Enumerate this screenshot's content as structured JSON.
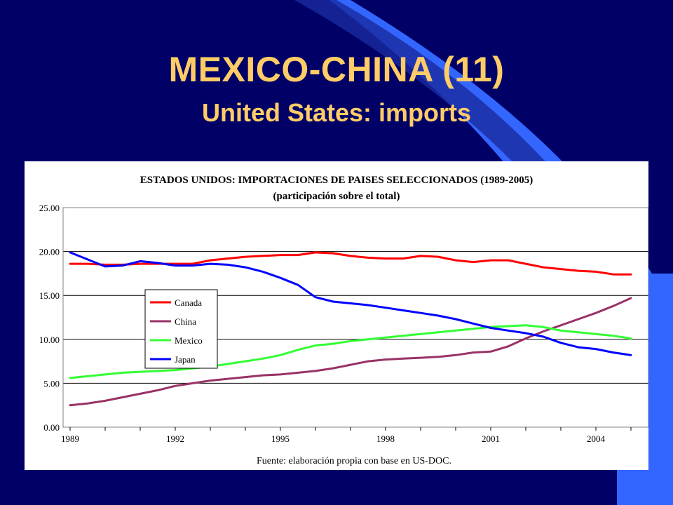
{
  "slide": {
    "title": "MEXICO-CHINA (11)",
    "subtitle": "United States: imports"
  },
  "theme": {
    "background": "#000066",
    "title_color": "#ffcc66",
    "accent_light": "#3366ff",
    "accent_dark": "#1a1a8c"
  },
  "chart_data": {
    "type": "line",
    "title": "ESTADOS UNIDOS: IMPORTACIONES DE PAISES SELECCIONADOS (1989-2005)",
    "subtitle": "(participación sobre el total)",
    "source": "Fuente: elaboración propia con base en US-DOC.",
    "x": [
      1989,
      1989.5,
      1990,
      1990.5,
      1991,
      1991.5,
      1992,
      1992.5,
      1993,
      1993.5,
      1994,
      1994.5,
      1995,
      1995.5,
      1996,
      1996.5,
      1997,
      1997.5,
      1998,
      1998.5,
      1999,
      1999.5,
      2000,
      2000.5,
      2001,
      2001.5,
      2002,
      2002.5,
      2003,
      2003.5,
      2004,
      2004.5,
      2005
    ],
    "x_ticks": [
      "1989",
      "1992",
      "1995",
      "1998",
      "2001",
      "2004"
    ],
    "x_tick_values": [
      1989,
      1992,
      1995,
      1998,
      2001,
      2004
    ],
    "xlim": [
      1988.8,
      2005.5
    ],
    "y_ticks": [
      "0.00",
      "5.00",
      "10.00",
      "15.00",
      "20.00",
      "25.00"
    ],
    "ylim": [
      0,
      25
    ],
    "grid": true,
    "legend_position": "left-center",
    "series": [
      {
        "name": "Canada",
        "color": "#ff0000",
        "values": [
          18.6,
          18.6,
          18.5,
          18.5,
          18.6,
          18.6,
          18.6,
          18.6,
          19.0,
          19.2,
          19.4,
          19.5,
          19.6,
          19.6,
          19.9,
          19.8,
          19.5,
          19.3,
          19.2,
          19.2,
          19.5,
          19.4,
          19.0,
          18.8,
          19.0,
          19.0,
          18.6,
          18.2,
          18.0,
          17.8,
          17.7,
          17.4,
          17.4
        ]
      },
      {
        "name": "China",
        "color": "#993366",
        "values": [
          2.5,
          2.7,
          3.0,
          3.4,
          3.8,
          4.2,
          4.7,
          5.0,
          5.3,
          5.5,
          5.7,
          5.9,
          6.0,
          6.2,
          6.4,
          6.7,
          7.1,
          7.5,
          7.7,
          7.8,
          7.9,
          8.0,
          8.2,
          8.5,
          8.6,
          9.2,
          10.1,
          10.9,
          11.6,
          12.3,
          13.0,
          13.8,
          14.7
        ]
      },
      {
        "name": "Mexico",
        "color": "#33ff33",
        "values": [
          5.6,
          5.8,
          6.0,
          6.2,
          6.3,
          6.4,
          6.5,
          6.7,
          6.9,
          7.2,
          7.5,
          7.8,
          8.2,
          8.8,
          9.3,
          9.5,
          9.8,
          10.0,
          10.2,
          10.4,
          10.6,
          10.8,
          11.0,
          11.2,
          11.4,
          11.5,
          11.6,
          11.4,
          11.0,
          10.8,
          10.6,
          10.4,
          10.1
        ]
      },
      {
        "name": "Japan",
        "color": "#0000ff",
        "values": [
          19.9,
          19.1,
          18.3,
          18.4,
          18.9,
          18.7,
          18.4,
          18.4,
          18.6,
          18.5,
          18.2,
          17.7,
          17.0,
          16.2,
          14.8,
          14.3,
          14.1,
          13.9,
          13.6,
          13.3,
          13.0,
          12.7,
          12.3,
          11.8,
          11.3,
          11.0,
          10.7,
          10.3,
          9.6,
          9.1,
          8.9,
          8.5,
          8.2
        ]
      }
    ]
  }
}
